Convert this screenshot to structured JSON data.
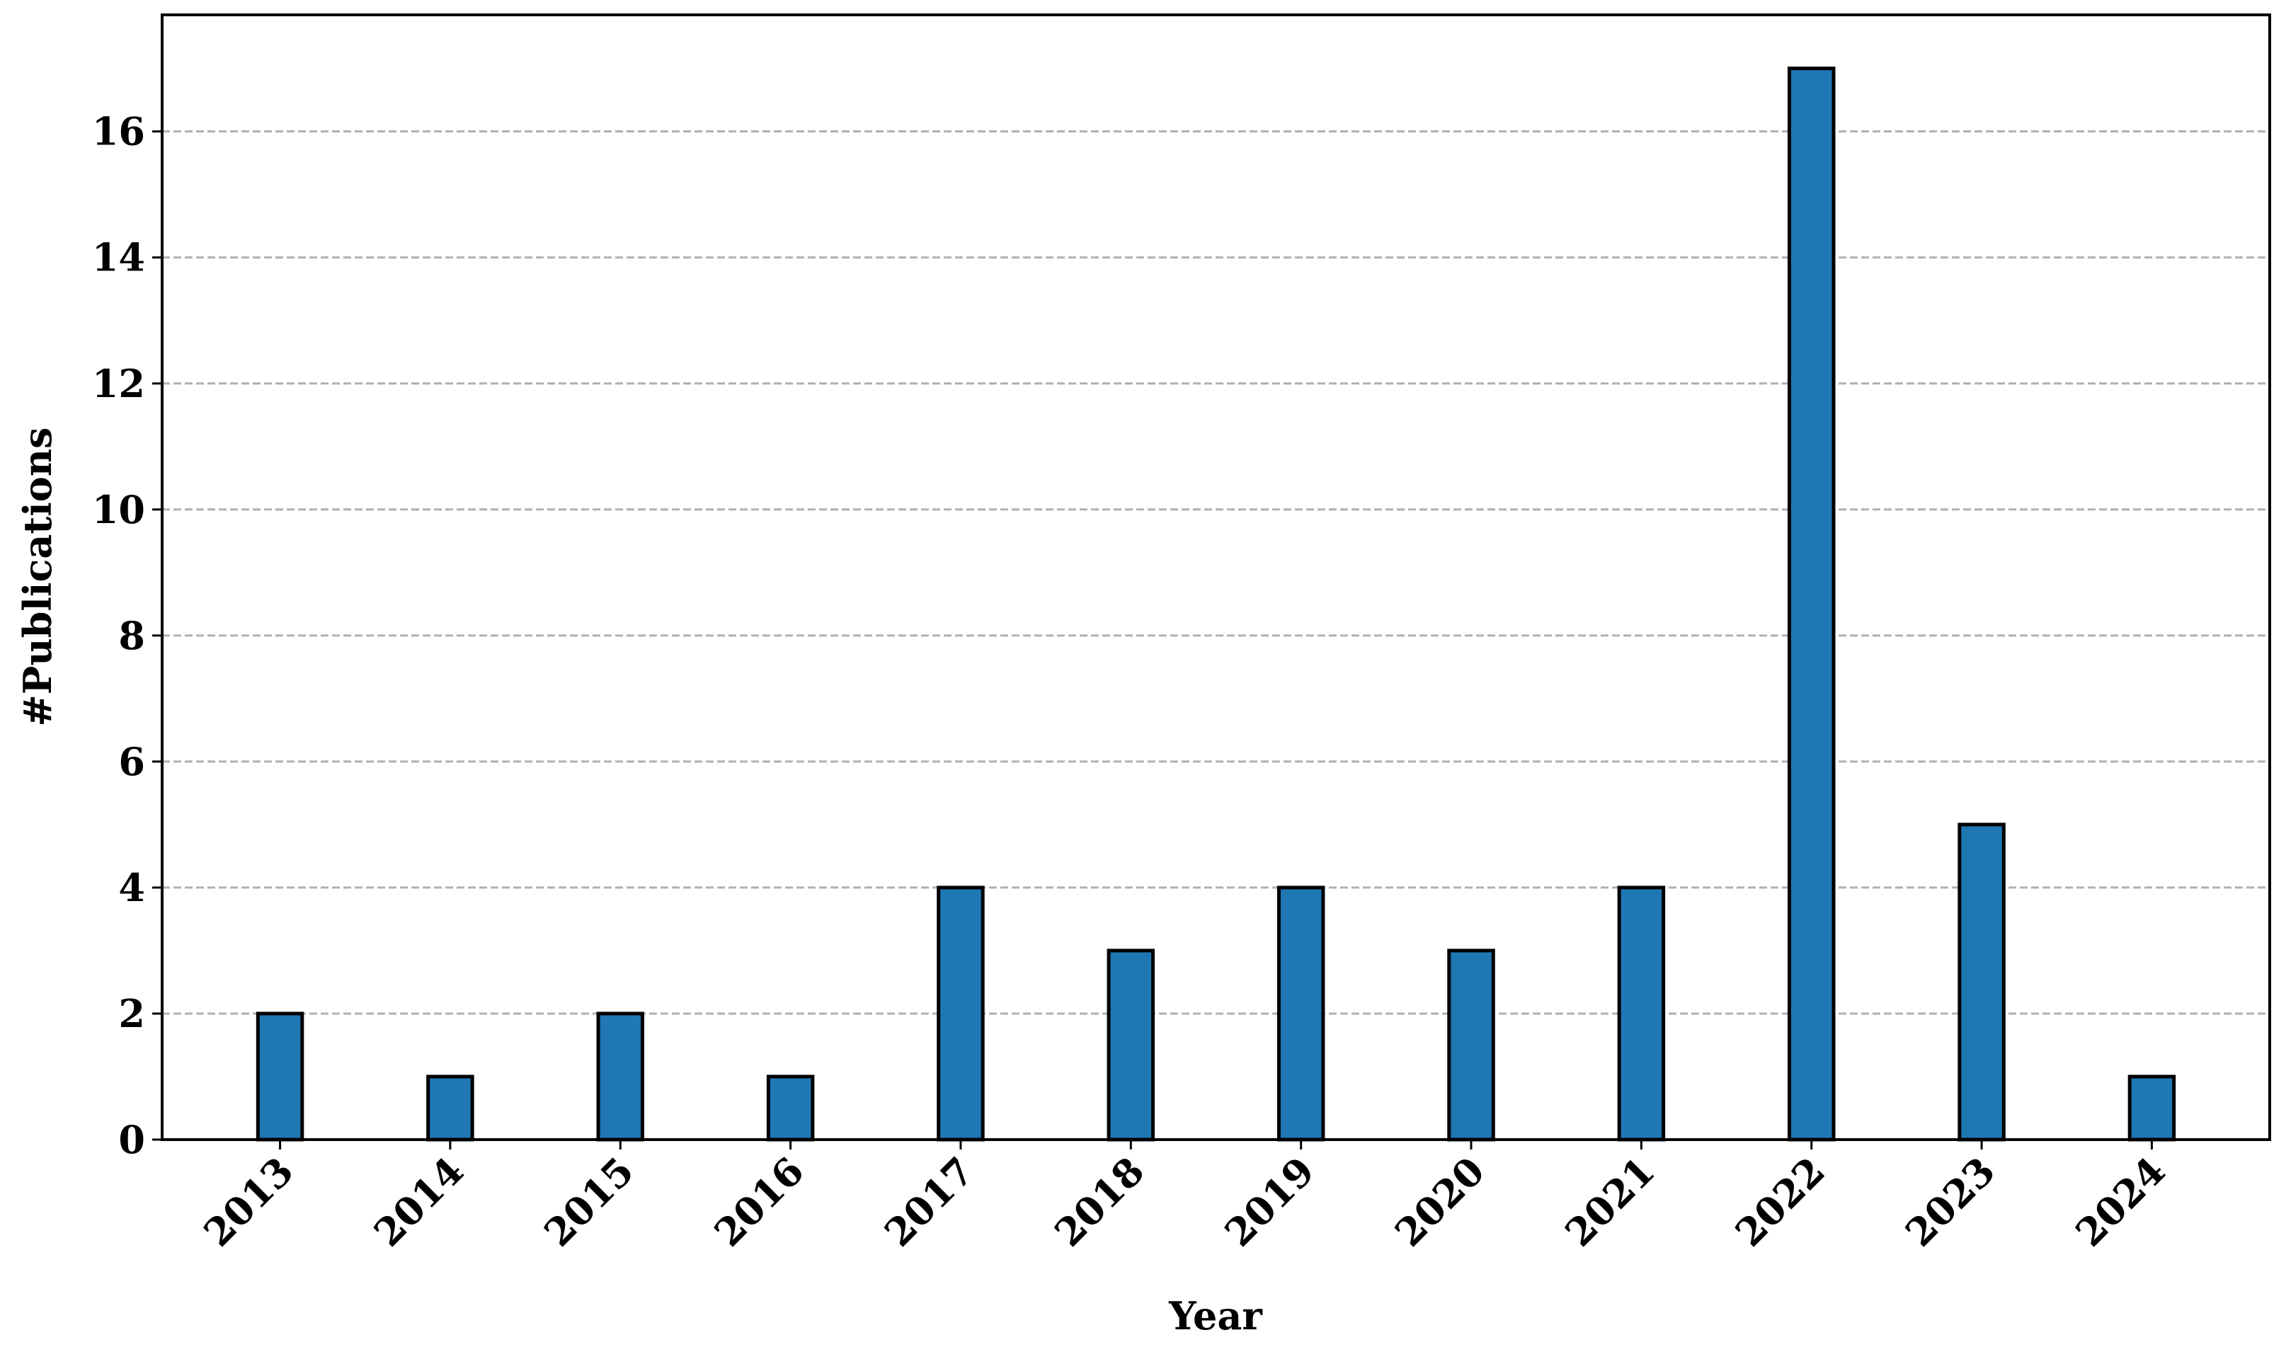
{
  "chart_data": {
    "type": "bar",
    "x_label": "Year",
    "y_label": "#Publications",
    "categories": [
      "2013",
      "2014",
      "2015",
      "2016",
      "2017",
      "2018",
      "2019",
      "2020",
      "2021",
      "2022",
      "2023",
      "2024"
    ],
    "values": [
      2,
      1,
      2,
      1,
      4,
      3,
      4,
      3,
      4,
      17,
      5,
      1
    ],
    "color": "#1f77b4",
    "edge_color": "#000000",
    "ylim": [
      0,
      17.85
    ],
    "yticks": [
      0,
      2,
      4,
      6,
      8,
      10,
      12,
      14,
      16
    ],
    "grid": true
  }
}
